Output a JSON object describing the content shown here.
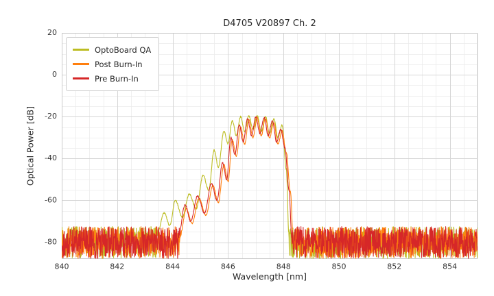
{
  "chart_data": {
    "type": "line",
    "title": "D4705 V20897 Ch. 2",
    "xlabel": "Wavelength [nm]",
    "ylabel": "Optical Power [dB]",
    "xlim": [
      840,
      855
    ],
    "ylim": [
      -88,
      20
    ],
    "xticks": [
      840,
      842,
      844,
      846,
      848,
      850,
      852,
      854
    ],
    "yticks": [
      20,
      0,
      -20,
      -40,
      -60,
      -80
    ],
    "grid": true,
    "minor_grid": true,
    "legend_position": "upper left",
    "noise_floor_db": -80,
    "noise_amplitude_db": 15,
    "series": [
      {
        "name": "OptoBoard QA",
        "color": "#bcbd22",
        "signal_points": [
          [
            843.4,
            -78
          ],
          [
            843.7,
            -66
          ],
          [
            843.9,
            -72
          ],
          [
            844.1,
            -60
          ],
          [
            844.35,
            -68
          ],
          [
            844.6,
            -57
          ],
          [
            844.85,
            -64
          ],
          [
            845.1,
            -48
          ],
          [
            845.3,
            -55
          ],
          [
            845.5,
            -36
          ],
          [
            845.65,
            -44
          ],
          [
            845.85,
            -27
          ],
          [
            846.0,
            -33
          ],
          [
            846.15,
            -22
          ],
          [
            846.3,
            -29
          ],
          [
            846.45,
            -20
          ],
          [
            846.6,
            -27
          ],
          [
            846.75,
            -19.5
          ],
          [
            846.9,
            -26
          ],
          [
            847.05,
            -19.5
          ],
          [
            847.2,
            -27
          ],
          [
            847.35,
            -20
          ],
          [
            847.5,
            -28
          ],
          [
            847.65,
            -21
          ],
          [
            847.8,
            -30
          ],
          [
            847.95,
            -24
          ],
          [
            848.1,
            -45
          ],
          [
            848.2,
            -78
          ]
        ]
      },
      {
        "name": "Post Burn-In",
        "color": "#ff7f0e",
        "signal_points": [
          [
            844.25,
            -78
          ],
          [
            844.5,
            -64
          ],
          [
            844.7,
            -71
          ],
          [
            844.95,
            -59
          ],
          [
            845.2,
            -67
          ],
          [
            845.45,
            -53
          ],
          [
            845.65,
            -61
          ],
          [
            845.85,
            -43
          ],
          [
            846.0,
            -51
          ],
          [
            846.15,
            -31
          ],
          [
            846.3,
            -39
          ],
          [
            846.45,
            -25
          ],
          [
            846.6,
            -33
          ],
          [
            846.75,
            -21.5
          ],
          [
            846.9,
            -30
          ],
          [
            847.05,
            -20.5
          ],
          [
            847.2,
            -29
          ],
          [
            847.35,
            -21
          ],
          [
            847.5,
            -30
          ],
          [
            847.65,
            -23
          ],
          [
            847.8,
            -33
          ],
          [
            847.95,
            -27
          ],
          [
            848.1,
            -37
          ],
          [
            848.25,
            -56
          ],
          [
            848.35,
            -78
          ]
        ]
      },
      {
        "name": "Pre Burn-In",
        "color": "#d62728",
        "signal_points": [
          [
            844.2,
            -78
          ],
          [
            844.45,
            -62
          ],
          [
            844.65,
            -70
          ],
          [
            844.9,
            -58
          ],
          [
            845.15,
            -66
          ],
          [
            845.4,
            -52
          ],
          [
            845.6,
            -60
          ],
          [
            845.8,
            -42
          ],
          [
            845.95,
            -50
          ],
          [
            846.1,
            -30
          ],
          [
            846.25,
            -38
          ],
          [
            846.4,
            -24
          ],
          [
            846.55,
            -32
          ],
          [
            846.7,
            -21
          ],
          [
            846.85,
            -29
          ],
          [
            847.0,
            -20
          ],
          [
            847.15,
            -28
          ],
          [
            847.3,
            -20.5
          ],
          [
            847.45,
            -29
          ],
          [
            847.6,
            -22
          ],
          [
            847.75,
            -32
          ],
          [
            847.9,
            -26
          ],
          [
            848.05,
            -35
          ],
          [
            848.2,
            -55
          ],
          [
            848.3,
            -78
          ]
        ]
      }
    ]
  }
}
